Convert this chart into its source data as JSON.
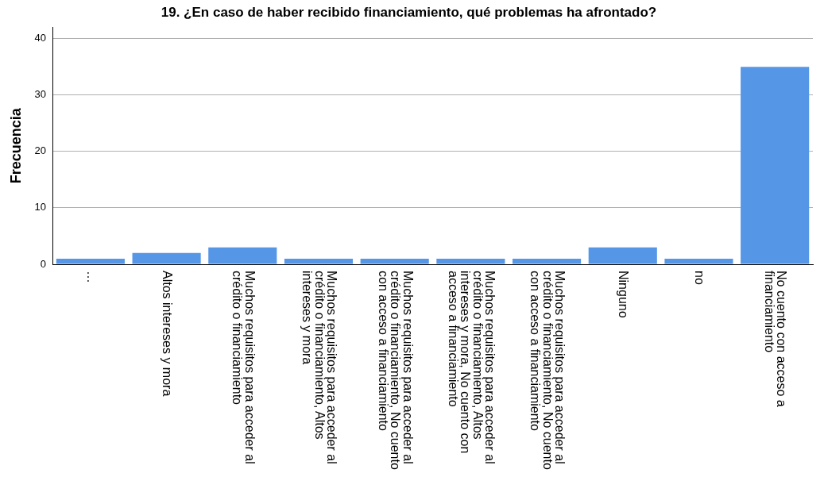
{
  "chart_data": {
    "type": "bar",
    "title": "19. ¿En caso de haber recibido financiamiento, qué problemas ha afrontado?",
    "ylabel": "Frecuencia",
    "categories": [
      "…",
      "Altos intereses y mora",
      "Muchos requisitos para acceder al crédito o financiamiento",
      "Muchos requisitos para acceder al crédito o financiamiento, Altos intereses y mora",
      "Muchos requisitos para acceder al crédito o financiamiento, No cuento con acceso a financiamiento",
      "Muchos requisitos para acceder al crédito o financiamiento, Altos intereses y mora, No cuento con acceso a financiamiento",
      "Muchos requisitos para acceder al crédito o financiamiento, No cuento con acceso a financiamiento",
      "Ninguno",
      "no",
      "No cuento con acceso a financiamiento"
    ],
    "values": [
      1,
      2,
      3,
      1,
      1,
      1,
      1,
      3,
      1,
      35
    ],
    "color": "#5596e6",
    "ylim": [
      0,
      42
    ],
    "yticks": [
      0,
      10,
      20,
      30,
      40
    ],
    "grid": "y"
  }
}
